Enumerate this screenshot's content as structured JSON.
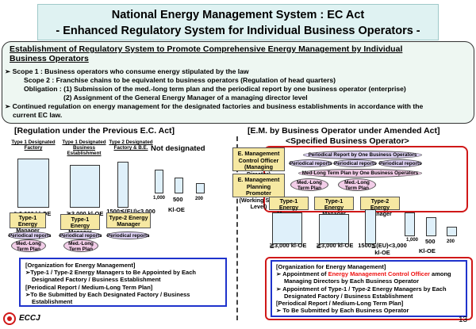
{
  "title": {
    "line1": "National Energy Management System : EC Act",
    "line2": "- Enhanced Regulatory System for Individual Business Operators -"
  },
  "intro": {
    "heading": "Establishment of Regulatory System to Promote Comprehensive Energy Management by Individual Business Operators",
    "lines": [
      "Scope 1   : Business operators who consume energy stipulated by the law",
      "Scope 2   : Franchise chains to be equivalent to business operators (Regulation of head quarters)",
      "Obligation : (1) Submission of the med.-long term plan and the periodical report by one business operator (enterprise)",
      "(2) Assignment of the General Energy Manager of a managing director level",
      "Continued regulation on energy management for the designated factories and business establishments in accordance with the",
      "current EC law."
    ]
  },
  "left": {
    "title": "[Regulation under the Previous E.C. Act]",
    "col1_label": "Type 1 Designated Factory",
    "col2_label": "Type 1 Designated Business Establishment",
    "col3_label": "Type 2 Designated Factory & B.E.",
    "not_designated": "Not designated",
    "val1": "≧3,000 kl-OE",
    "val2": "≧3,000 kl-OE",
    "val3a": "1500≦(EU)<3,000",
    "val3b": "kl-OE",
    "small_1000": "1,000",
    "small_500": "500",
    "small_200": "200",
    "klOE": "Kl-OE",
    "mgr1": "Type-1 Energy Manager",
    "mgr2": "Type-1 Energy Manager",
    "mgr3": "Type-2 Energy Manager",
    "report": "Periodical reports",
    "plan": "Med.-Long Term Plan",
    "org": {
      "h1": "[Organization for Energy Management]",
      "b1": "Type-1 / Type-2 Energy Managers to Be Appointed by Each",
      "b1b": "Designated Factory / Business Establishment",
      "h2": "[Periodical Report / Medium-Long Term Plan]",
      "b2": "To Be Submitted by Each Designated Factory / Business",
      "b2b": "Establishment"
    }
  },
  "right": {
    "title1": "[E.M. by Business Operator under Amended Act]",
    "title2": "<Specified Business Operator>",
    "officer": "E. Management Control Officer (Managing Director)",
    "promoter": "E. Management Planning Promoter (Working Staff Level)",
    "periodical_one": "Periodical Report by One Business Operators",
    "report": "Periodical reports",
    "medlong_one": "Med-Long Term Plan by One Business Operators",
    "plan": "Med.-Long Term Plan",
    "mgr1": "Type-1 Energy Manager",
    "mgr2": "Type-1 Energy Manager",
    "mgr3": "Type-2 Energy Manager",
    "val1": "≧3,000 kl-OE",
    "val2": "≧3,000 kl-OE",
    "val3a": "1500≦(EU)<3,000",
    "val3b": "kl-OE",
    "small_1000": "1,000",
    "small_500": "500",
    "small_200": "200",
    "klOE": "Kl-OE",
    "org": {
      "h1": "[Organization for Energy Management]",
      "b1pre": "Appointment of ",
      "b1red": "Energy Management Control Officer",
      "b1post": " among",
      "b1b": "Managing Directors by Each Business Operator",
      "b2": "Appointment of Type-1 / Type-2 Energy Managers by Each",
      "b2b": "Designated Factory / Business Establishment",
      "h2": "[Periodical Report / Medium-Long Term Plan]",
      "b3": "To Be Submitted by Each Business Operator"
    }
  },
  "footer": {
    "logo": "ECCJ",
    "page": "13"
  },
  "colors": {
    "title_bg": "#dff2f2",
    "manager_fill": "#f6e8a2",
    "report_oval": "#dcd0f2",
    "plan_oval": "#f2cde8",
    "blue_border": "#1f33cc",
    "red_accent": "#d01818"
  }
}
